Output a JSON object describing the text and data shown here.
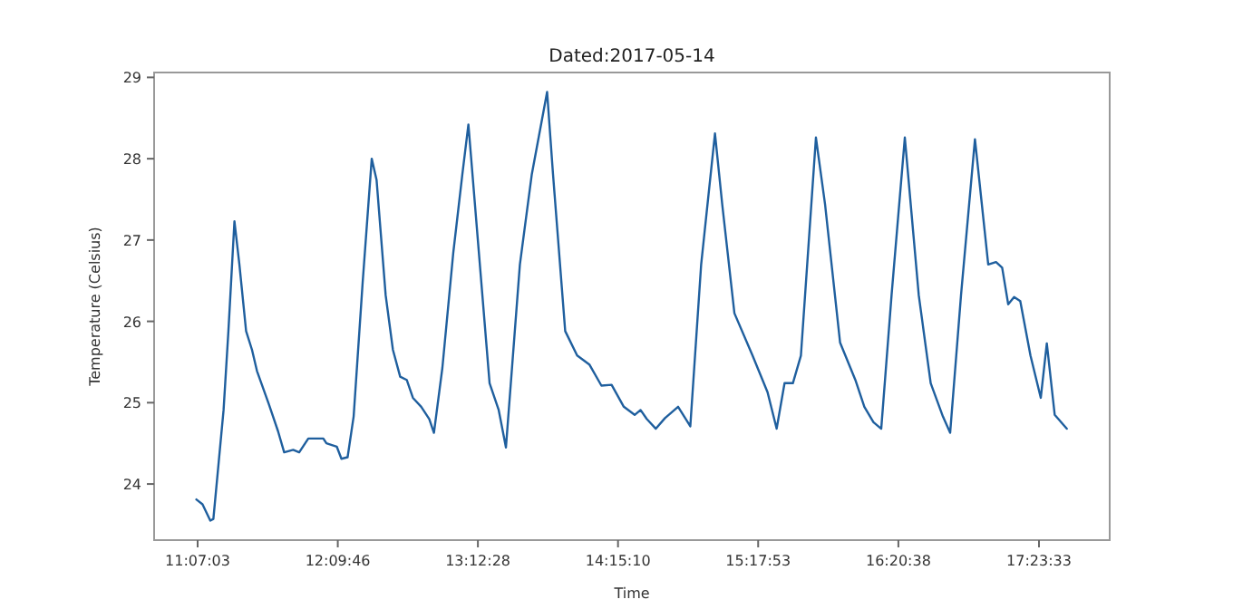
{
  "chart_data": {
    "type": "line",
    "title": "Dated:2017-05-14",
    "xlabel": "Time",
    "ylabel": "Temperature (Celsius)",
    "xlim": [
      10.793,
      17.92
    ],
    "ylim": [
      23.31,
      29.06
    ],
    "xticks": [
      {
        "value": 11.1175,
        "label": "11:07:03"
      },
      {
        "value": 12.1628,
        "label": "12:09:46"
      },
      {
        "value": 13.2078,
        "label": "13:12:28"
      },
      {
        "value": 14.2528,
        "label": "14:15:10"
      },
      {
        "value": 15.2981,
        "label": "15:17:53"
      },
      {
        "value": 16.3439,
        "label": "16:20:38"
      },
      {
        "value": 17.3925,
        "label": "17:23:33"
      }
    ],
    "yticks": [
      24,
      25,
      26,
      27,
      28,
      29
    ],
    "grid": false,
    "line_style": "solid",
    "series": [
      {
        "color": "#1f5f9e",
        "x": [
          11.108,
          11.154,
          11.212,
          11.235,
          11.311,
          11.347,
          11.392,
          11.429,
          11.479,
          11.523,
          11.56,
          11.649,
          11.717,
          11.763,
          11.83,
          11.875,
          11.943,
          12.055,
          12.078,
          12.155,
          12.19,
          12.236,
          12.281,
          12.348,
          12.416,
          12.452,
          12.52,
          12.574,
          12.628,
          12.677,
          12.723,
          12.785,
          12.845,
          12.88,
          12.943,
          13.024,
          13.092,
          13.137,
          13.204,
          13.295,
          13.363,
          13.417,
          13.521,
          13.61,
          13.724,
          13.768,
          13.859,
          13.948,
          14.039,
          14.129,
          14.205,
          14.296,
          14.377,
          14.421,
          14.467,
          14.535,
          14.603,
          14.701,
          14.792,
          14.873,
          14.976,
          15.03,
          15.121,
          15.256,
          15.368,
          15.436,
          15.495,
          15.557,
          15.617,
          15.729,
          15.797,
          15.909,
          16.023,
          16.09,
          16.158,
          16.216,
          16.293,
          16.392,
          16.496,
          16.585,
          16.676,
          16.73,
          16.811,
          16.915,
          17.014,
          17.072,
          17.118,
          17.163,
          17.207,
          17.253,
          17.329,
          17.406,
          17.451,
          17.51,
          17.6
        ],
        "values": [
          23.81,
          23.75,
          23.55,
          23.57,
          24.91,
          25.88,
          27.23,
          26.7,
          25.88,
          25.65,
          25.39,
          24.98,
          24.65,
          24.39,
          24.42,
          24.39,
          24.56,
          24.56,
          24.5,
          24.46,
          24.31,
          24.33,
          24.83,
          26.47,
          28.0,
          27.74,
          26.32,
          25.65,
          25.32,
          25.28,
          25.06,
          24.95,
          24.8,
          24.63,
          25.43,
          26.84,
          27.81,
          28.42,
          27.07,
          25.24,
          24.91,
          24.45,
          26.7,
          27.81,
          28.82,
          27.81,
          25.88,
          25.58,
          25.47,
          25.21,
          25.22,
          24.95,
          24.85,
          24.91,
          24.8,
          24.68,
          24.81,
          24.95,
          24.71,
          26.7,
          28.31,
          27.44,
          26.1,
          25.58,
          25.13,
          24.68,
          25.24,
          25.24,
          25.58,
          28.26,
          27.44,
          25.74,
          25.28,
          24.95,
          24.76,
          24.68,
          26.32,
          28.26,
          26.32,
          25.24,
          24.83,
          24.63,
          26.32,
          28.24,
          26.7,
          26.73,
          26.66,
          26.21,
          26.3,
          26.25,
          25.58,
          25.06,
          25.73,
          24.85,
          24.68
        ]
      }
    ]
  }
}
